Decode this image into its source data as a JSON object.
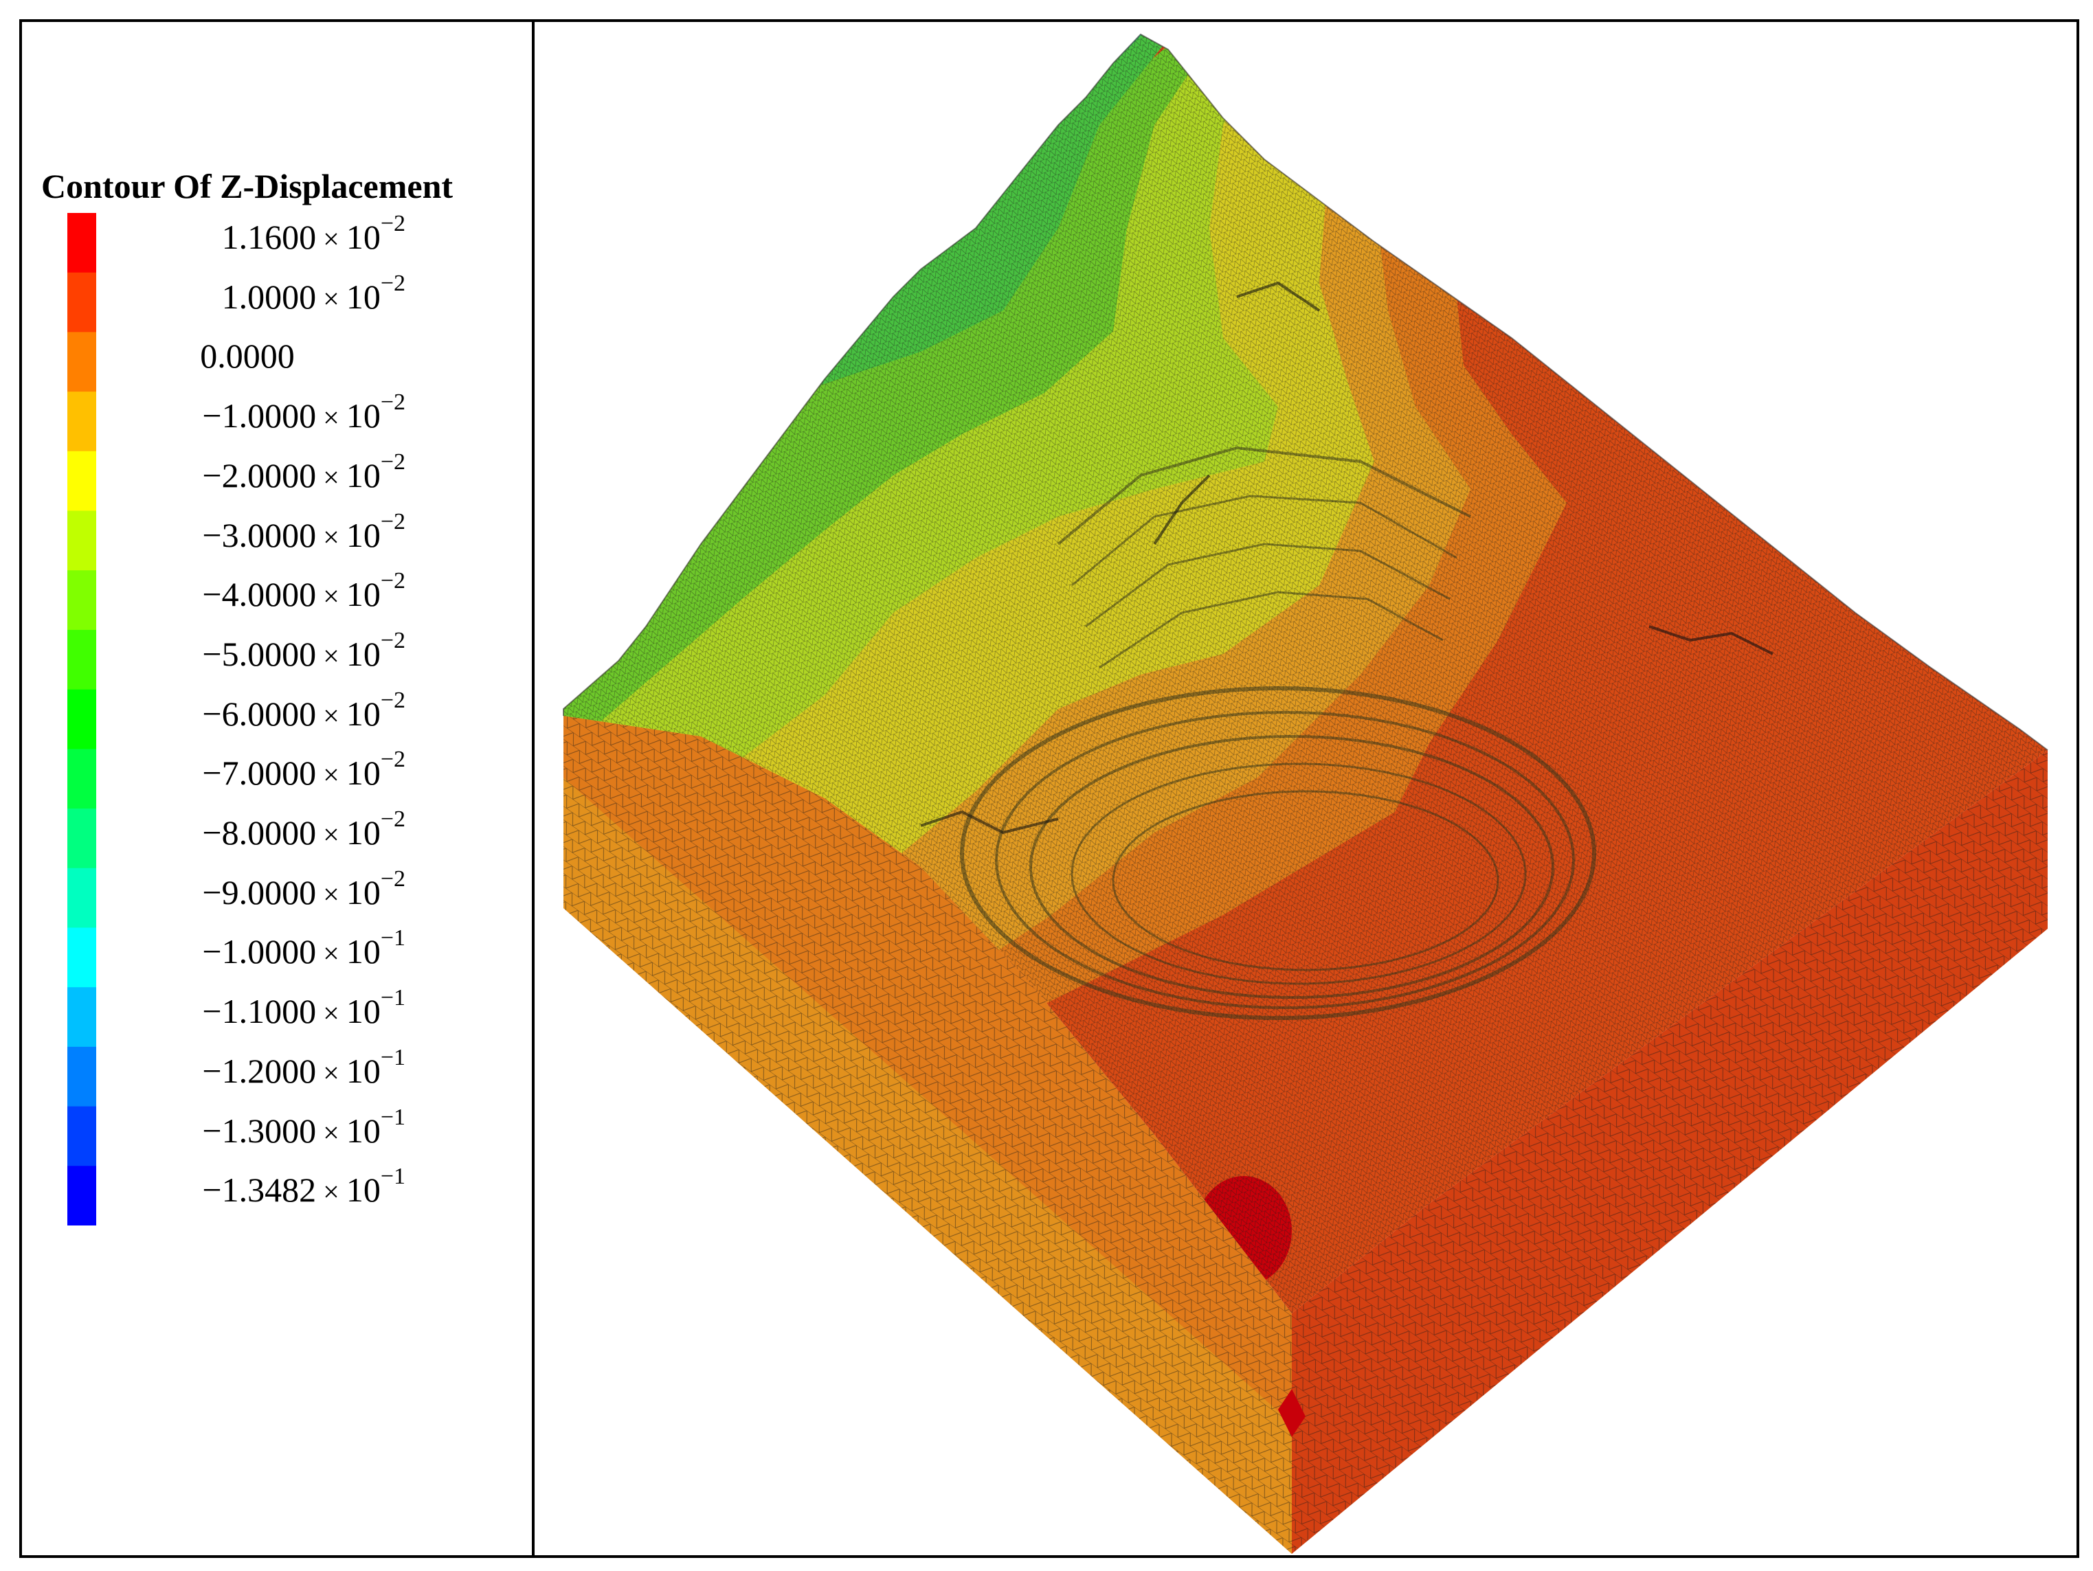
{
  "legend": {
    "title": "Contour Of Z-Displacement",
    "times_symbol": "×",
    "entries": [
      {
        "mantissa": "1.1600",
        "base": "10",
        "exponent": "−2",
        "color": "#ff0000"
      },
      {
        "mantissa": "1.0000",
        "base": "10",
        "exponent": "−2",
        "color": "#ff4000"
      },
      {
        "mantissa": "0.0000",
        "base": "",
        "exponent": "",
        "color": "#ff8000"
      },
      {
        "mantissa": "−1.0000",
        "base": "10",
        "exponent": "−2",
        "color": "#ffc000"
      },
      {
        "mantissa": "−2.0000",
        "base": "10",
        "exponent": "−2",
        "color": "#ffff00"
      },
      {
        "mantissa": "−3.0000",
        "base": "10",
        "exponent": "−2",
        "color": "#c0ff00"
      },
      {
        "mantissa": "−4.0000",
        "base": "10",
        "exponent": "−2",
        "color": "#80ff00"
      },
      {
        "mantissa": "−5.0000",
        "base": "10",
        "exponent": "−2",
        "color": "#40ff00"
      },
      {
        "mantissa": "−6.0000",
        "base": "10",
        "exponent": "−2",
        "color": "#00ff00"
      },
      {
        "mantissa": "−7.0000",
        "base": "10",
        "exponent": "−2",
        "color": "#00ff40"
      },
      {
        "mantissa": "−8.0000",
        "base": "10",
        "exponent": "−2",
        "color": "#00ff80"
      },
      {
        "mantissa": "−9.0000",
        "base": "10",
        "exponent": "−2",
        "color": "#00ffc0"
      },
      {
        "mantissa": "−1.0000",
        "base": "10",
        "exponent": "−1",
        "color": "#00ffff"
      },
      {
        "mantissa": "−1.1000",
        "base": "10",
        "exponent": "−1",
        "color": "#00c0ff"
      },
      {
        "mantissa": "−1.2000",
        "base": "10",
        "exponent": "−1",
        "color": "#0080ff"
      },
      {
        "mantissa": "−1.3000",
        "base": "10",
        "exponent": "−1",
        "color": "#0040ff"
      },
      {
        "mantissa": "−1.3482",
        "base": "10",
        "exponent": "−1",
        "color": "#0000ff"
      }
    ]
  },
  "model": {
    "palette": {
      "red": "#d42a10",
      "deep_red": "#c8000a",
      "orange_red": "#dd4a12",
      "orange": "#e07a1a",
      "light_orange": "#e2a020",
      "yellow": "#d8d020",
      "yellow_green": "#b8d820",
      "green": "#70c828",
      "green2": "#48c038",
      "teal": "#30c090",
      "cyan": "#30b8d8",
      "blue": "#2060e0",
      "dark_blue": "#1030d0",
      "mesh": "#1a1a1a"
    }
  }
}
